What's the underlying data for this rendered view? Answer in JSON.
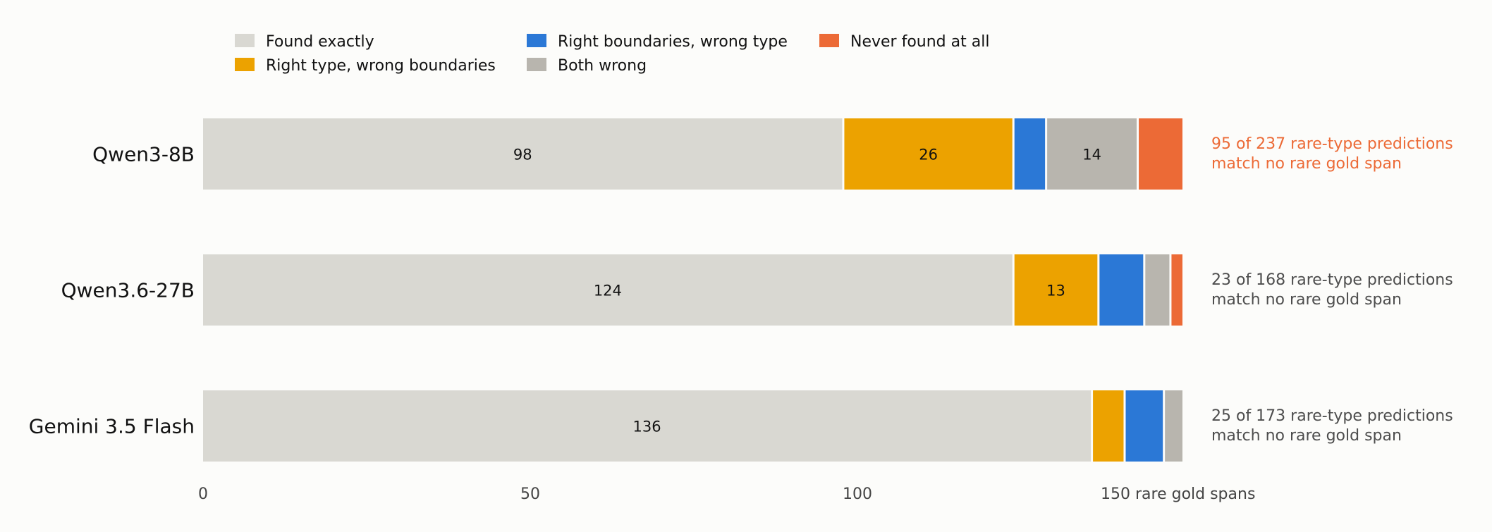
{
  "chart_data": {
    "type": "bar",
    "orientation": "horizontal",
    "stacked": true,
    "categories": [
      "Qwen3-8B",
      "Qwen3.6-27B",
      "Gemini 3.5 Flash"
    ],
    "series": [
      {
        "name": "Found exactly",
        "color": "#d9d8d2",
        "values": [
          98,
          124,
          136
        ],
        "labels": [
          "98",
          "124",
          "136"
        ]
      },
      {
        "name": "Right type, wrong boundaries",
        "color": "#eca200",
        "values": [
          26,
          13,
          5
        ],
        "labels": [
          "26",
          "13",
          ""
        ]
      },
      {
        "name": "Right boundaries, wrong type",
        "color": "#2b78d6",
        "values": [
          5,
          7,
          6
        ],
        "labels": [
          "",
          "",
          ""
        ]
      },
      {
        "name": "Both wrong",
        "color": "#b8b5ae",
        "values": [
          14,
          4,
          3
        ],
        "labels": [
          "14",
          "",
          ""
        ]
      },
      {
        "name": "Never found at all",
        "color": "#ec6a36",
        "values": [
          7,
          2,
          0
        ],
        "labels": [
          "",
          "",
          ""
        ]
      }
    ],
    "annotations": [
      {
        "line1": "95 of 237 rare-type predictions",
        "line2": "match no rare gold span",
        "color": "#ec6a36"
      },
      {
        "line1": "23 of 168 rare-type predictions",
        "line2": "match no rare gold span",
        "color": "#4d4d4d"
      },
      {
        "line1": "25 of 173 rare-type predictions",
        "line2": "match no rare gold span",
        "color": "#4d4d4d"
      }
    ],
    "xticks": [
      {
        "value": 0,
        "label": "0"
      },
      {
        "value": 50,
        "label": "50"
      },
      {
        "value": 100,
        "label": "100"
      },
      {
        "value": 150,
        "label": "150 rare gold spans"
      }
    ],
    "xlim": [
      0,
      150
    ],
    "grid": false,
    "legend_position": "top"
  }
}
